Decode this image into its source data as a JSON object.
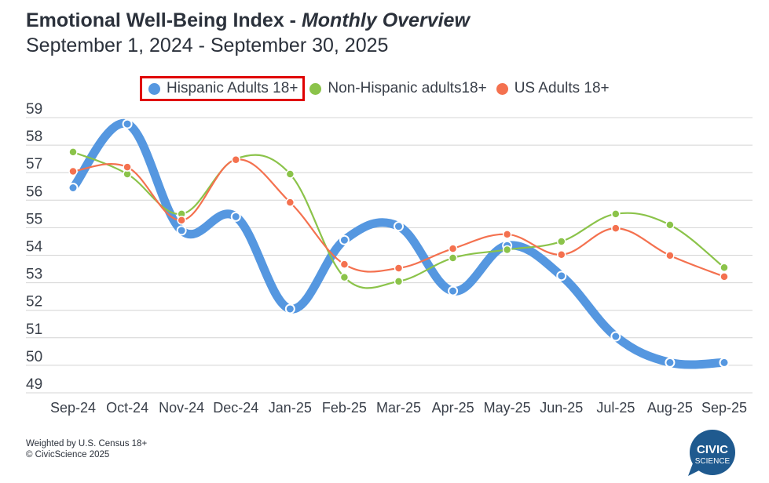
{
  "header": {
    "title_main": "Emotional Well-Being Index - ",
    "title_italic": "Monthly Overview",
    "subtitle": "September 1, 2024 - September 30, 2025"
  },
  "footer": {
    "note": "Weighted by U.S. Census 18+",
    "copyright": "© CivicScience 2025"
  },
  "logo": {
    "line1": "CIVIC",
    "line2": "SCIENCE",
    "color": "#1f5a8f"
  },
  "chart_data": {
    "type": "line",
    "title": "Emotional Well-Being Index - Monthly Overview",
    "subtitle": "September 1, 2024 - September 30, 2025",
    "xlabel": "",
    "ylabel": "",
    "ylim": [
      49,
      59
    ],
    "yticks": [
      "59",
      "58",
      "57",
      "56",
      "55",
      "54",
      "53",
      "52",
      "51",
      "50",
      "49"
    ],
    "grid": true,
    "legend_position": "top",
    "categories": [
      "Sep-24",
      "Oct-24",
      "Nov-24",
      "Dec-24",
      "Jan-25",
      "Feb-25",
      "Mar-25",
      "Apr-25",
      "May-25",
      "Jun-25",
      "Jul-25",
      "Aug-25",
      "Sep-25"
    ],
    "series": [
      {
        "name": "Hispanic Adults 18+",
        "color": "#5597e0",
        "highlighted": true,
        "values": [
          56.45,
          58.77,
          54.9,
          55.4,
          52.05,
          54.55,
          55.05,
          52.7,
          54.35,
          53.25,
          51.05,
          50.1,
          50.1
        ]
      },
      {
        "name": "Non-Hispanic adults18+",
        "color": "#8bc34a",
        "highlighted": false,
        "values": [
          57.75,
          56.95,
          55.5,
          57.5,
          56.95,
          53.2,
          53.05,
          53.9,
          54.2,
          54.5,
          55.5,
          55.1,
          53.55
        ]
      },
      {
        "name": "US Adults 18+",
        "color": "#f4714f",
        "highlighted": false,
        "values": [
          57.05,
          57.2,
          55.27,
          57.47,
          55.92,
          53.67,
          53.53,
          54.24,
          54.76,
          54.02,
          54.98,
          53.99,
          53.22
        ]
      }
    ]
  }
}
